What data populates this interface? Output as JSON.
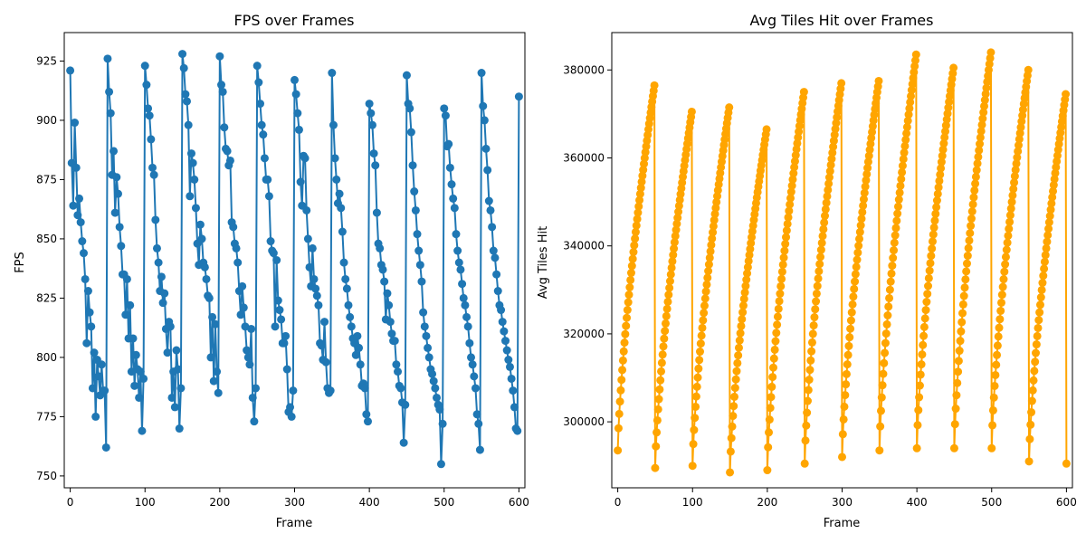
{
  "chart_data": [
    {
      "type": "line",
      "title": "FPS over Frames",
      "xlabel": "Frame",
      "ylabel": "FPS",
      "xlim": [
        -8,
        608
      ],
      "ylim": [
        745,
        937
      ],
      "xticks": [
        0,
        100,
        200,
        300,
        400,
        500,
        600
      ],
      "yticks": [
        750,
        775,
        800,
        825,
        850,
        875,
        900,
        925
      ],
      "color": "#1f77b4",
      "marker": "circle",
      "series": [
        {
          "x": [
            0,
            2,
            4,
            6,
            8,
            10,
            12,
            14,
            16,
            18,
            20,
            22,
            24,
            26,
            28,
            30,
            32,
            34,
            36,
            38,
            40,
            42,
            44,
            46,
            48,
            50,
            52,
            54,
            56,
            58,
            60,
            62,
            64,
            66,
            68,
            70,
            72,
            74,
            76,
            78,
            80,
            82,
            84,
            86,
            88,
            90,
            92,
            94,
            96,
            98,
            100,
            102,
            104,
            106,
            108,
            110,
            112,
            114,
            116,
            118,
            120,
            122,
            124,
            126,
            128,
            130,
            132,
            134,
            136,
            138,
            140,
            142,
            144,
            146,
            148,
            150,
            152,
            154,
            156,
            158,
            160,
            162,
            164,
            166,
            168,
            170,
            172,
            174,
            176,
            178,
            180,
            182,
            184,
            186,
            188,
            190,
            192,
            194,
            196,
            198,
            200,
            202,
            204,
            206,
            208,
            210,
            212,
            214,
            216,
            218,
            220,
            222,
            224,
            226,
            228,
            230,
            232,
            234,
            236,
            238,
            240,
            242,
            244,
            246,
            248,
            250,
            252,
            254,
            256,
            258,
            260,
            262,
            264,
            266,
            268,
            270,
            272,
            274,
            276,
            278,
            280,
            282,
            284,
            286,
            288,
            290,
            292,
            294,
            296,
            298,
            300,
            302,
            304,
            306,
            308,
            310,
            312,
            314,
            316,
            318,
            320,
            322,
            324,
            326,
            328,
            330,
            332,
            334,
            336,
            338,
            340,
            342,
            344,
            346,
            348,
            350,
            352,
            354,
            356,
            358,
            360,
            362,
            364,
            366,
            368,
            370,
            372,
            374,
            376,
            378,
            380,
            382,
            384,
            386,
            388,
            390,
            392,
            394,
            396,
            398,
            400,
            402,
            404,
            406,
            408,
            410,
            412,
            414,
            416,
            418,
            420,
            422,
            424,
            426,
            428,
            430,
            432,
            434,
            436,
            438,
            440,
            442,
            444,
            446,
            448,
            450,
            452,
            454,
            456,
            458,
            460,
            462,
            464,
            466,
            468,
            470,
            472,
            474,
            476,
            478,
            480,
            482,
            484,
            486,
            488,
            490,
            492,
            494,
            496,
            498,
            500,
            502,
            504,
            506,
            508,
            510,
            512,
            514,
            516,
            518,
            520,
            522,
            524,
            526,
            528,
            530,
            532,
            534,
            536,
            538,
            540,
            542,
            544,
            546,
            548,
            550,
            552,
            554,
            556,
            558,
            560,
            562,
            564,
            566,
            568,
            570,
            572,
            574,
            576,
            578,
            580,
            582,
            584,
            586,
            588,
            590,
            592,
            594,
            596,
            598,
            600
          ],
          "values": [
            921,
            882,
            864,
            899,
            880,
            860,
            867,
            857,
            849,
            844,
            833,
            806,
            828,
            819,
            813,
            787,
            802,
            775,
            799,
            792,
            784,
            797,
            786,
            786,
            762,
            926,
            912,
            903,
            877,
            887,
            861,
            876,
            869,
            855,
            847,
            835,
            835,
            818,
            833,
            808,
            822,
            794,
            808,
            788,
            801,
            795,
            783,
            794,
            769,
            791,
            923,
            915,
            905,
            902,
            892,
            880,
            877,
            858,
            846,
            840,
            828,
            834,
            823,
            827,
            812,
            802,
            815,
            813,
            783,
            794,
            779,
            803,
            795,
            770,
            787,
            928,
            922,
            911,
            908,
            898,
            868,
            886,
            882,
            875,
            863,
            848,
            839,
            856,
            850,
            840,
            838,
            833,
            826,
            825,
            800,
            817,
            790,
            814,
            794,
            785,
            927,
            915,
            912,
            897,
            888,
            887,
            881,
            883,
            857,
            855,
            848,
            846,
            840,
            828,
            818,
            830,
            821,
            813,
            803,
            800,
            797,
            812,
            783,
            773,
            787,
            923,
            916,
            907,
            898,
            894,
            884,
            875,
            875,
            868,
            849,
            845,
            844,
            813,
            841,
            824,
            820,
            816,
            806,
            806,
            809,
            795,
            777,
            779,
            775,
            786,
            917,
            911,
            903,
            896,
            874,
            864,
            885,
            884,
            862,
            850,
            838,
            830,
            846,
            833,
            829,
            826,
            822,
            806,
            805,
            799,
            815,
            798,
            787,
            785,
            786,
            920,
            898,
            884,
            875,
            865,
            869,
            863,
            853,
            840,
            833,
            829,
            822,
            817,
            813,
            808,
            806,
            801,
            809,
            804,
            797,
            788,
            789,
            787,
            776,
            773,
            907,
            903,
            898,
            886,
            881,
            861,
            848,
            846,
            839,
            837,
            832,
            816,
            827,
            822,
            815,
            810,
            807,
            807,
            797,
            794,
            788,
            787,
            781,
            764,
            780,
            919,
            907,
            905,
            895,
            881,
            870,
            862,
            852,
            845,
            839,
            832,
            819,
            813,
            809,
            804,
            800,
            795,
            793,
            790,
            787,
            783,
            780,
            778,
            755,
            772,
            905,
            902,
            889,
            890,
            880,
            873,
            867,
            863,
            852,
            845,
            840,
            837,
            831,
            825,
            822,
            817,
            813,
            806,
            800,
            797,
            792,
            787,
            776,
            772,
            761,
            920,
            906,
            900,
            888,
            879,
            866,
            862,
            855,
            845,
            842,
            835,
            828,
            822,
            820,
            815,
            811,
            807,
            803,
            799,
            796,
            791,
            786,
            779,
            770,
            769,
            910
          ],
          "xlabel": "Frame"
        }
      ]
    },
    {
      "type": "line",
      "title": "Avg Tiles Hit over Frames",
      "xlabel": "Frame",
      "ylabel": "Avg Tiles Hit",
      "xlim": [
        -8,
        608
      ],
      "ylim": [
        285000,
        388500
      ],
      "xticks": [
        0,
        100,
        200,
        300,
        400,
        500,
        600
      ],
      "yticks": [
        300000,
        320000,
        340000,
        360000,
        380000
      ],
      "color": "orange",
      "marker": "circle",
      "cycles": [
        {
          "start": 0,
          "end": 49,
          "y0": 293500,
          "y1": 376500
        },
        {
          "start": 50,
          "end": 99,
          "y0": 289500,
          "y1": 370500
        },
        {
          "start": 100,
          "end": 149,
          "y0": 290000,
          "y1": 371500
        },
        {
          "start": 150,
          "end": 199,
          "y0": 288500,
          "y1": 366500
        },
        {
          "start": 200,
          "end": 249,
          "y0": 289000,
          "y1": 375000
        },
        {
          "start": 250,
          "end": 299,
          "y0": 290500,
          "y1": 377000
        },
        {
          "start": 300,
          "end": 349,
          "y0": 292000,
          "y1": 377500
        },
        {
          "start": 350,
          "end": 399,
          "y0": 293500,
          "y1": 383500
        },
        {
          "start": 400,
          "end": 449,
          "y0": 294000,
          "y1": 380500
        },
        {
          "start": 450,
          "end": 499,
          "y0": 294000,
          "y1": 384000
        },
        {
          "start": 500,
          "end": 549,
          "y0": 294000,
          "y1": 380000
        },
        {
          "start": 550,
          "end": 599,
          "y0": 291000,
          "y1": 374500
        }
      ],
      "final_point": {
        "x": 600,
        "y": 290500
      }
    }
  ]
}
